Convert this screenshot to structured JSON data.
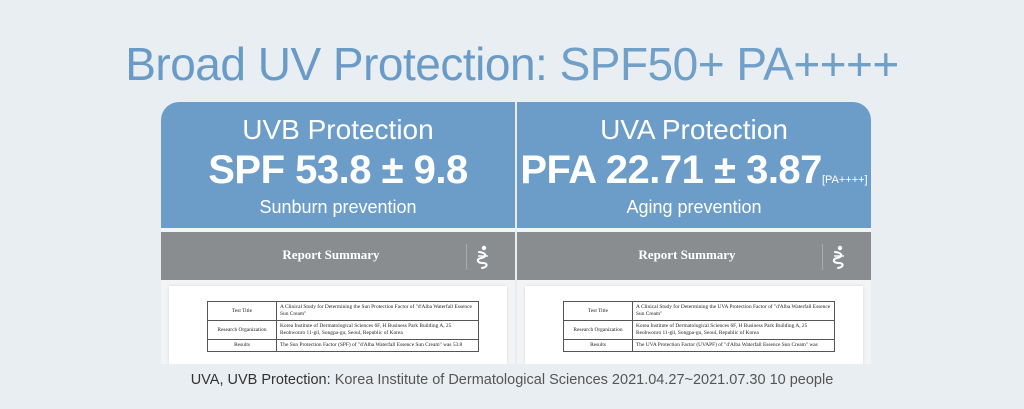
{
  "title": {
    "main": "Broad UV Protection:",
    "rating": "SPF50+ PA++++"
  },
  "panels": [
    {
      "heading": "UVB Protection",
      "value": "SPF 53.8 ± 9.8",
      "badge": "",
      "subtitle": "Sunburn prevention",
      "report": {
        "header": "Report Summary",
        "rows": [
          {
            "key": "Test Title",
            "value": "A Clinical Study for Determining the Sun Protection Factor of \"d'Alba Waterfall Essence Sun Cream\""
          },
          {
            "key": "Research Organization",
            "value": "Korea Institute of Dermatological Sciences 6F, H Business Park Building A, 25 Beobwonro 11-gil, Songpa-gu, Seoul, Republic of Korea"
          },
          {
            "key": "Results",
            "value": "The Sun Protection Factor (SPF) of \"d'Alba Waterfall Essence Sun Cream\" was 53.8"
          }
        ]
      }
    },
    {
      "heading": "UVA Protection",
      "value": "PFA 22.71 ± 3.87",
      "badge": "[PA++++]",
      "subtitle": "Aging prevention",
      "report": {
        "header": "Report Summary",
        "rows": [
          {
            "key": "Test Title",
            "value": "A Clinical Study for Determining the UVA Protection Factor of \"d'Alba Waterfall Essence Sun Cream\""
          },
          {
            "key": "Research Organization",
            "value": "Korea Institute of Dermatological Sciences 6F, H Business Park Building A, 25 Beobwonro 11-gil, Songpa-gu, Seoul, Republic of Korea"
          },
          {
            "key": "Results",
            "value": "The UVA Protection Factor (UVAPF) of \"d'Alba Waterfall Essence Sun Cream\" was"
          }
        ]
      }
    }
  ],
  "footer": {
    "label": "UVA, UVB Protection:",
    "text": "Korea Institute of Dermatological Sciences 2021.04.27~2021.07.30 10 people"
  },
  "colors": {
    "accent": "#6b9dc8",
    "title": "#6a9bc6",
    "bar": "#8a8d90",
    "background": "#e8eef2"
  },
  "icons": {
    "report_logo": "institute-logo-icon"
  }
}
